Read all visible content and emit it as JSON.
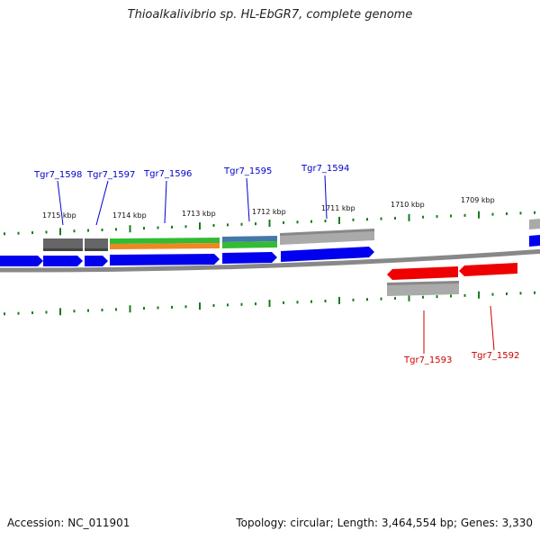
{
  "title": "Thioalkalivibrio sp. HL-EbGR7, complete genome",
  "footer": {
    "accession": "Accession: NC_011901",
    "summary": "Topology: circular; Length: 3,464,554 bp; Genes: 3,330"
  },
  "colors": {
    "forward_gene": "#0000ee",
    "reverse_gene": "#ee0000",
    "forward_label": "#0000cc",
    "reverse_label": "#cc0000",
    "tick": "#1a7a1a",
    "backbone": "#888888",
    "feature_dark": "#666666",
    "feature_light": "#aaaaaa",
    "feature_green": "#33bb33",
    "feature_orange": "#ee8822",
    "feature_steelblue": "#4477aa"
  },
  "kbp_labels": [
    "1715 kbp",
    "1714 kbp",
    "1713 kbp",
    "1712 kbp",
    "1711 kbp",
    "1710 kbp",
    "1709 kbp"
  ],
  "forward_labels": [
    "Tgr7_1598",
    "Tgr7_1597",
    "Tgr7_1596",
    "Tgr7_1595",
    "Tgr7_1594"
  ],
  "reverse_labels": [
    "Tgr7_1593",
    "Tgr7_1592"
  ]
}
